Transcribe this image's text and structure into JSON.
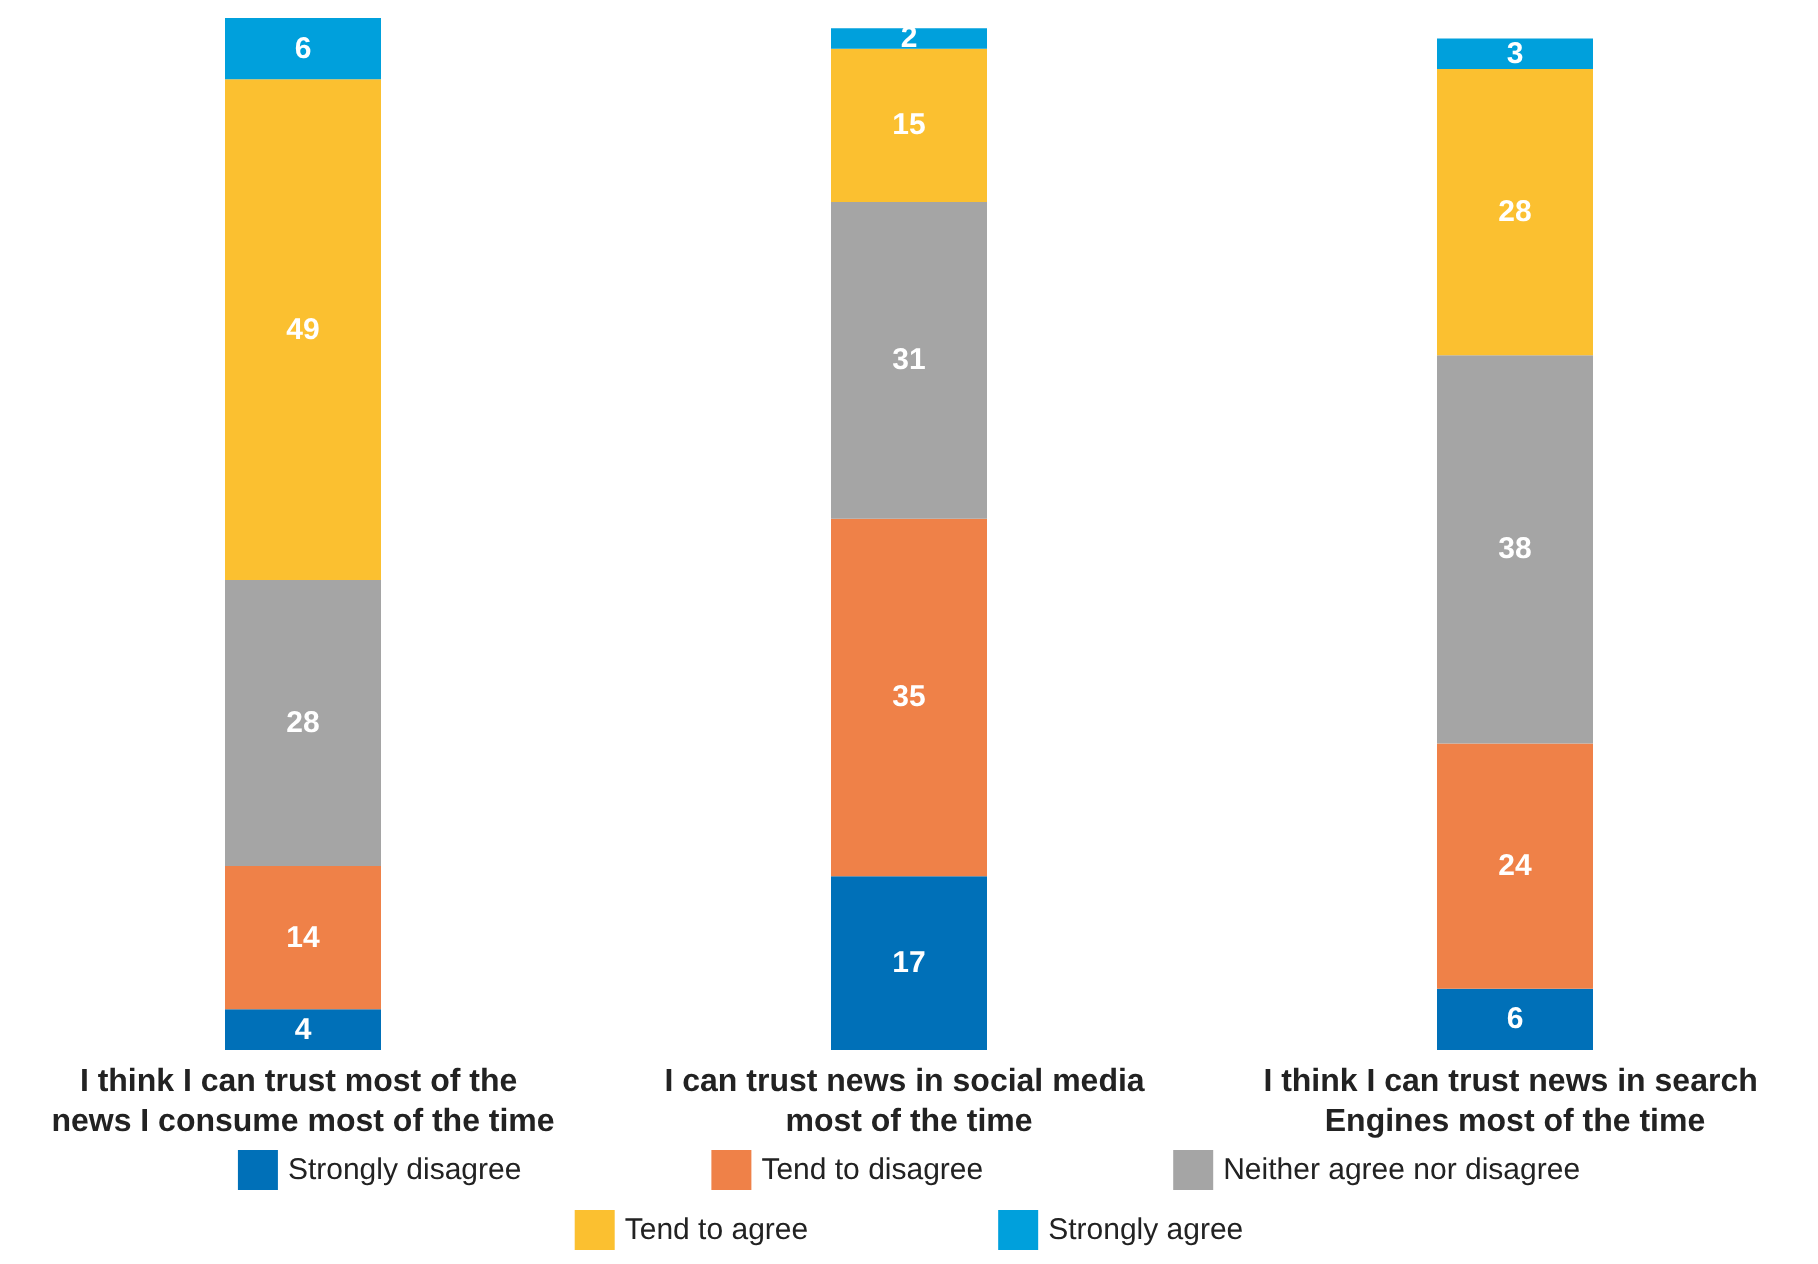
{
  "chart_data": {
    "type": "bar",
    "stacked": true,
    "data_labels": true,
    "legend": "bottom",
    "categories": [
      "I think I can trust most of the news I consume most of the time",
      "I can trust news in social media most of the time",
      "I think I can trust news in search Engines most of the time"
    ],
    "series": [
      {
        "name": "Strongly disagree",
        "color": "#0070b8",
        "values": [
          4,
          17,
          6
        ]
      },
      {
        "name": "Tend to disagree",
        "color": "#ef8148",
        "values": [
          14,
          35,
          24
        ]
      },
      {
        "name": "Neither agree nor disagree",
        "color": "#a5a5a5",
        "values": [
          28,
          31,
          38
        ]
      },
      {
        "name": "Tend to agree",
        "color": "#fbc030",
        "values": [
          49,
          15,
          28
        ]
      },
      {
        "name": "Strongly agree",
        "color": "#00a0dc",
        "values": [
          6,
          2,
          3
        ]
      }
    ]
  }
}
